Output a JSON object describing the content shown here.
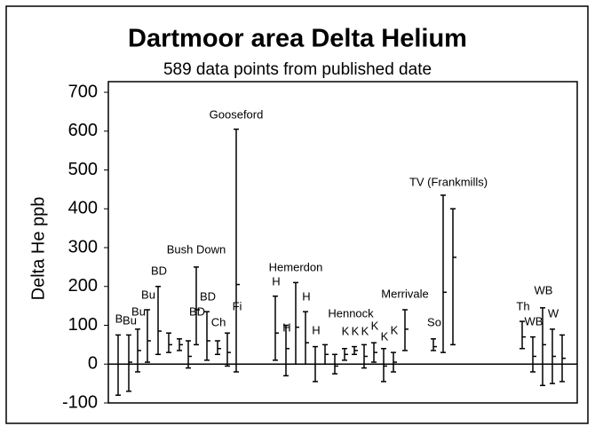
{
  "chart_data": {
    "type": "range",
    "title": "Dartmoor area Delta Helium",
    "subtitle": "589 data points from published date",
    "ylabel": "Delta He ppb",
    "ylim": [
      -100,
      700
    ],
    "yticks": [
      -100,
      0,
      100,
      200,
      300,
      400,
      500,
      600,
      700
    ],
    "color": "#000000",
    "categories": [
      "B",
      "Bu",
      "Bu",
      "Bu",
      "BD",
      null,
      null,
      null,
      "BD",
      "BD",
      "Ch",
      null,
      "Fi",
      "H",
      "H",
      null,
      "H",
      "H",
      null,
      null,
      "K",
      "K",
      "K",
      "K",
      "K",
      "K",
      null,
      "So",
      null,
      null,
      "Th",
      "WB",
      "WB",
      "W",
      null
    ],
    "high": [
      75,
      75,
      90,
      140,
      200,
      80,
      65,
      60,
      250,
      135,
      60,
      80,
      605,
      175,
      100,
      210,
      135,
      45,
      50,
      25,
      40,
      45,
      50,
      55,
      40,
      30,
      140,
      65,
      435,
      400,
      110,
      70,
      145,
      90,
      75
    ],
    "low": [
      -80,
      -70,
      -20,
      5,
      25,
      30,
      35,
      -10,
      50,
      10,
      25,
      -5,
      -20,
      10,
      -30,
      0,
      0,
      -45,
      0,
      -25,
      10,
      25,
      -10,
      5,
      -45,
      -20,
      35,
      35,
      30,
      50,
      40,
      -20,
      -55,
      -50,
      -45
    ],
    "mean": [
      0,
      5,
      35,
      60,
      85,
      50,
      50,
      20,
      140,
      60,
      40,
      30,
      205,
      80,
      40,
      95,
      55,
      0,
      25,
      -5,
      25,
      35,
      20,
      30,
      -5,
      5,
      90,
      45,
      185,
      275,
      70,
      20,
      50,
      20,
      15
    ],
    "annotations": [
      "Bush Down",
      "Gooseford",
      "Hemerdon",
      "Hennock",
      "Merrivale",
      "TV (Frankmills)"
    ]
  }
}
